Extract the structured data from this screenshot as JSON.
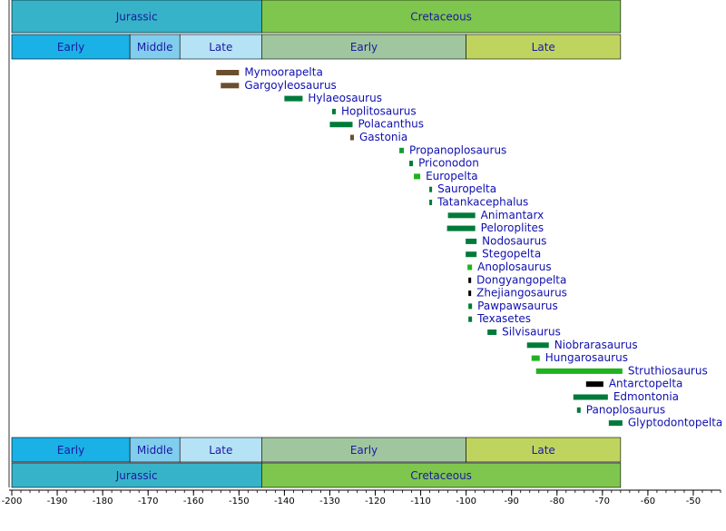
{
  "chart_data": {
    "type": "timeline",
    "periods": [
      {
        "name": "Jurassic",
        "start": -200,
        "end": -145,
        "color": "#37b3c9"
      },
      {
        "name": "Cretaceous",
        "start": -145,
        "end": -66,
        "color": "#7fc64e"
      }
    ],
    "epochs": [
      {
        "name": "Early",
        "start": -200,
        "end": -174,
        "color": "#1ab1e6"
      },
      {
        "name": "Middle",
        "start": -174,
        "end": -163,
        "color": "#80cdee"
      },
      {
        "name": "Late",
        "start": -163,
        "end": -145,
        "color": "#b5e2f5"
      },
      {
        "name": "Early",
        "start": -145,
        "end": -100,
        "color": "#a0c69f"
      },
      {
        "name": "Late",
        "start": -100,
        "end": -66,
        "color": "#bfd45f"
      }
    ],
    "categories": [
      "Mymoorapelta",
      "Gargoyleosaurus",
      "Hylaeosaurus",
      "Hoplitosaurus",
      "Polacanthus",
      "Gastonia",
      "Propanoplosaurus",
      "Priconodon",
      "Europelta",
      "Sauropelta",
      "Tatankacephalus",
      "Animantarx",
      "Peloroplites",
      "Nodosaurus",
      "Stegopelta",
      "Anoplosaurus",
      "Dongyangopelta",
      "Zhejiangosaurus",
      "Pawpawsaurus",
      "Texasetes",
      "Silvisaurus",
      "Niobrarasaurus",
      "Hungarosaurus",
      "Struthiosaurus",
      "Antarctopelta",
      "Edmontonia",
      "Panoplosaurus",
      "Glyptodontopelta"
    ],
    "starts": [
      -155,
      -154,
      -140,
      -129.5,
      -130,
      -125.5,
      -114.7,
      -112.5,
      -111.5,
      -108.1,
      -108.1,
      -104,
      -104.2,
      -100.1,
      -100.1,
      -99.7,
      -99.5,
      -99.5,
      -99.5,
      -99.5,
      -95.3,
      -86.6,
      -85.6,
      -84.6,
      -73.6,
      -76.4,
      -75.6,
      -68.6
    ],
    "ends": [
      -150,
      -150,
      -136,
      -128.7,
      -125,
      -124.7,
      -113.7,
      -111.7,
      -110.1,
      -107.5,
      -107.5,
      -98,
      -98,
      -97.7,
      -97.7,
      -98.7,
      -98.9,
      -98.9,
      -98.7,
      -98.7,
      -93.3,
      -81.8,
      -83.8,
      -65.6,
      -69.8,
      -68.8,
      -74.8,
      -65.6
    ],
    "colors": [
      "#6b4f2e",
      "#6b4f2e",
      "#007a3a",
      "#007a3a",
      "#007a3a",
      "#6b4f2e",
      "#129c3a",
      "#007a3a",
      "#1fb31f",
      "#007a3a",
      "#007a3a",
      "#007a3a",
      "#007a3a",
      "#007a3a",
      "#007a3a",
      "#1fb31f",
      "#000000",
      "#000000",
      "#007a3a",
      "#007a3a",
      "#007a3a",
      "#007a3a",
      "#1fb31f",
      "#1fb31f",
      "#000000",
      "#007a3a",
      "#007a3a",
      "#007a3a"
    ],
    "xlim": [
      -200,
      -44
    ],
    "xticks": [
      -200,
      -190,
      -180,
      -170,
      -160,
      -150,
      -140,
      -130,
      -120,
      -110,
      -100,
      -90,
      -80,
      -70,
      -60,
      -50
    ],
    "minor_tick_step": 2
  }
}
